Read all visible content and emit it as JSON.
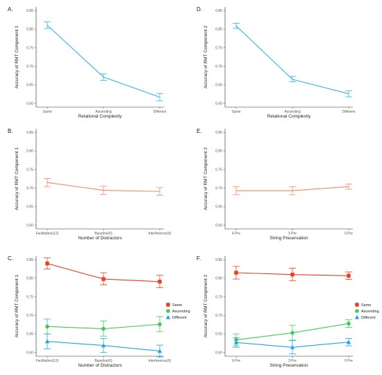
{
  "chart_data": [
    {
      "panel": "A.",
      "type": "line",
      "categories": [
        "Same",
        "Ascending",
        "Different"
      ],
      "xlabel": "Relational Complexity",
      "ylabel": "Accuracy of RMT Component 1",
      "ylim": [
        0.59,
        0.86
      ],
      "yticks": [
        "0.60",
        "0.65",
        "0.70",
        "0.75",
        "0.80",
        "0.85"
      ],
      "grid": false,
      "series": [
        {
          "color": "#2FB4E9",
          "marker": "none",
          "values": [
            0.811,
            0.671,
            0.617
          ],
          "lower": [
            0.802,
            0.662,
            0.607
          ],
          "upper": [
            0.82,
            0.68,
            0.627
          ]
        }
      ]
    },
    {
      "panel": "D.",
      "type": "line",
      "categories": [
        "Same",
        "Ascending",
        "Different"
      ],
      "xlabel": "Relational Complexity",
      "ylabel": "Accuracy of RMT Component 2",
      "ylim": [
        0.59,
        0.86
      ],
      "yticks": [
        "0.60",
        "0.65",
        "0.70",
        "0.75",
        "0.80",
        "0.85"
      ],
      "grid": false,
      "series": [
        {
          "color": "#2FB4E9",
          "marker": "none",
          "values": [
            0.809,
            0.665,
            0.626
          ],
          "lower": [
            0.802,
            0.658,
            0.618
          ],
          "upper": [
            0.816,
            0.673,
            0.634
          ]
        }
      ]
    },
    {
      "panel": "B.",
      "type": "line",
      "categories": [
        "Facilitation(12)",
        "Baseline(0)",
        "Interference(6)"
      ],
      "xlabel": "Number of Distractors",
      "ylabel": "Accuracy of RMT Component 1",
      "ylim": [
        0.59,
        0.86
      ],
      "yticks": [
        "0.60",
        "0.65",
        "0.70",
        "0.75",
        "0.80",
        "0.85"
      ],
      "grid": false,
      "series": [
        {
          "color": "#F5875F",
          "marker": "none",
          "values": [
            0.715,
            0.694,
            0.691
          ],
          "lower": [
            0.704,
            0.683,
            0.681
          ],
          "upper": [
            0.726,
            0.705,
            0.701
          ]
        }
      ]
    },
    {
      "panel": "E.",
      "type": "line",
      "categories": [
        "6 Pre",
        "3 Pre",
        "0 Pre"
      ],
      "xlabel": "String Preservation",
      "ylabel": "Accuracy of RMT Component 2",
      "ylim": [
        0.59,
        0.86
      ],
      "yticks": [
        "0.60",
        "0.65",
        "0.70",
        "0.75",
        "0.80",
        "0.85"
      ],
      "grid": false,
      "series": [
        {
          "color": "#F5875F",
          "marker": "none",
          "values": [
            0.693,
            0.693,
            0.704
          ],
          "lower": [
            0.682,
            0.682,
            0.697
          ],
          "upper": [
            0.704,
            0.704,
            0.711
          ]
        }
      ]
    },
    {
      "panel": "C.",
      "type": "line",
      "categories": [
        "Facilitation(12)",
        "Baseline(0)",
        "Interference(6)"
      ],
      "xlabel": "Number of Distractors",
      "ylabel": "Accuracy of RMT Component 1",
      "ylim": [
        0.59,
        0.86
      ],
      "yticks": [
        "0.60",
        "0.65",
        "0.70",
        "0.75",
        "0.80",
        "0.85"
      ],
      "grid": false,
      "legend": {
        "position": "right",
        "entries": [
          "Same",
          "Ascending",
          "Different"
        ]
      },
      "series": [
        {
          "name": "Same",
          "color": "#EE3B1E",
          "marker": "square",
          "values": [
            0.84,
            0.798,
            0.791
          ],
          "lower": [
            0.825,
            0.782,
            0.775
          ],
          "upper": [
            0.855,
            0.815,
            0.808
          ]
        },
        {
          "name": "Ascending",
          "color": "#3DCC5A",
          "marker": "circle",
          "values": [
            0.67,
            0.664,
            0.676
          ],
          "lower": [
            0.65,
            0.644,
            0.656
          ],
          "upper": [
            0.69,
            0.685,
            0.697
          ]
        },
        {
          "name": "Different",
          "color": "#1EA5E6",
          "marker": "triangle",
          "values": [
            0.63,
            0.619,
            0.604
          ],
          "lower": [
            0.61,
            0.6,
            0.588
          ],
          "upper": [
            0.65,
            0.638,
            0.62
          ]
        }
      ]
    },
    {
      "panel": "F.",
      "type": "line",
      "categories": [
        "6 Pre",
        "3 Pre",
        "0 Pre"
      ],
      "xlabel": "String Preservation",
      "ylabel": "Accuracy of RMT Component 2",
      "ylim": [
        0.59,
        0.86
      ],
      "yticks": [
        "0.60",
        "0.65",
        "0.70",
        "0.75",
        "0.80",
        "0.85"
      ],
      "grid": false,
      "legend": {
        "position": "right",
        "entries": [
          "Same",
          "Ascending",
          "Different"
        ]
      },
      "series": [
        {
          "name": "Same",
          "color": "#EE3B1E",
          "marker": "square",
          "values": [
            0.815,
            0.81,
            0.807
          ],
          "lower": [
            0.798,
            0.793,
            0.797
          ],
          "upper": [
            0.832,
            0.827,
            0.817
          ]
        },
        {
          "name": "Ascending",
          "color": "#3DCC5A",
          "marker": "circle",
          "values": [
            0.634,
            0.653,
            0.678
          ],
          "lower": [
            0.618,
            0.633,
            0.668
          ],
          "upper": [
            0.65,
            0.673,
            0.688
          ]
        },
        {
          "name": "Different",
          "color": "#1EA5E6",
          "marker": "triangle",
          "values": [
            0.627,
            0.614,
            0.628
          ],
          "lower": [
            0.614,
            0.596,
            0.618
          ],
          "upper": [
            0.64,
            0.632,
            0.638
          ]
        }
      ]
    }
  ]
}
